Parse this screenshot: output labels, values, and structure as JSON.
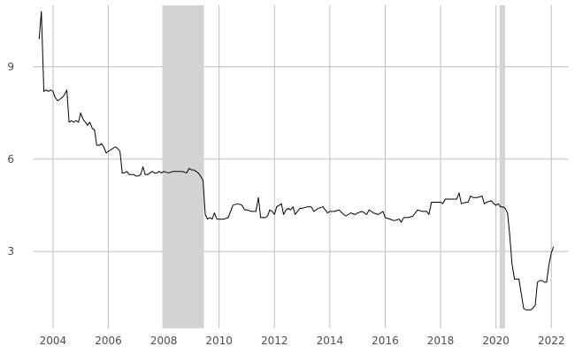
{
  "chart_data": {
    "type": "line",
    "title": "",
    "xlabel": "",
    "ylabel": "",
    "xlim": [
      2003.3,
      2022.6
    ],
    "ylim": [
      0.5,
      11.0
    ],
    "grid": true,
    "legend": "none",
    "x_ticks": [
      {
        "value": 2004,
        "label": "2004"
      },
      {
        "value": 2006,
        "label": "2006"
      },
      {
        "value": 2008,
        "label": "2008"
      },
      {
        "value": 2010,
        "label": "2010"
      },
      {
        "value": 2012,
        "label": "2012"
      },
      {
        "value": 2014,
        "label": "2014"
      },
      {
        "value": 2016,
        "label": "2016"
      },
      {
        "value": 2018,
        "label": "2018"
      },
      {
        "value": 2020,
        "label": "2020"
      },
      {
        "value": 2022,
        "label": "2022"
      }
    ],
    "y_ticks": [
      {
        "value": 3,
        "label": "3"
      },
      {
        "value": 6,
        "label": "6"
      },
      {
        "value": 9,
        "label": "9"
      }
    ],
    "shaded_periods": [
      {
        "start": 2007.95,
        "end": 2009.45
      },
      {
        "start": 2020.13,
        "end": 2020.33
      }
    ],
    "colors": {
      "line": "#000000",
      "shading": "#d3d3d3",
      "grid": "#bebebe",
      "tick_text": "#4d4d4d"
    },
    "series": [
      {
        "points": [
          [
            2003.5,
            9.9
          ],
          [
            2003.58,
            10.8
          ],
          [
            2003.67,
            8.2
          ],
          [
            2003.75,
            8.25
          ],
          [
            2003.83,
            8.2
          ],
          [
            2003.92,
            8.25
          ],
          [
            2004.0,
            8.2
          ],
          [
            2004.08,
            8.0
          ],
          [
            2004.17,
            7.9
          ],
          [
            2004.25,
            7.95
          ],
          [
            2004.33,
            8.0
          ],
          [
            2004.42,
            8.1
          ],
          [
            2004.5,
            8.25
          ],
          [
            2004.58,
            7.2
          ],
          [
            2004.67,
            7.25
          ],
          [
            2004.75,
            7.2
          ],
          [
            2004.83,
            7.25
          ],
          [
            2004.92,
            7.2
          ],
          [
            2005.0,
            7.5
          ],
          [
            2005.08,
            7.3
          ],
          [
            2005.17,
            7.2
          ],
          [
            2005.25,
            7.1
          ],
          [
            2005.33,
            7.2
          ],
          [
            2005.42,
            7.0
          ],
          [
            2005.5,
            6.95
          ],
          [
            2005.58,
            6.45
          ],
          [
            2005.67,
            6.45
          ],
          [
            2005.75,
            6.5
          ],
          [
            2005.83,
            6.4
          ],
          [
            2005.92,
            6.2
          ],
          [
            2006.0,
            6.25
          ],
          [
            2006.08,
            6.3
          ],
          [
            2006.17,
            6.35
          ],
          [
            2006.25,
            6.4
          ],
          [
            2006.33,
            6.35
          ],
          [
            2006.42,
            6.25
          ],
          [
            2006.5,
            5.55
          ],
          [
            2006.58,
            5.55
          ],
          [
            2006.67,
            5.6
          ],
          [
            2006.75,
            5.5
          ],
          [
            2006.83,
            5.5
          ],
          [
            2006.92,
            5.5
          ],
          [
            2007.0,
            5.45
          ],
          [
            2007.08,
            5.45
          ],
          [
            2007.17,
            5.5
          ],
          [
            2007.25,
            5.75
          ],
          [
            2007.33,
            5.5
          ],
          [
            2007.42,
            5.5
          ],
          [
            2007.5,
            5.55
          ],
          [
            2007.58,
            5.6
          ],
          [
            2007.67,
            5.55
          ],
          [
            2007.75,
            5.55
          ],
          [
            2007.83,
            5.6
          ],
          [
            2007.92,
            5.55
          ],
          [
            2008.0,
            5.6
          ],
          [
            2008.17,
            5.55
          ],
          [
            2008.33,
            5.6
          ],
          [
            2008.5,
            5.6
          ],
          [
            2008.67,
            5.6
          ],
          [
            2008.83,
            5.55
          ],
          [
            2008.92,
            5.7
          ],
          [
            2009.0,
            5.65
          ],
          [
            2009.08,
            5.65
          ],
          [
            2009.17,
            5.6
          ],
          [
            2009.25,
            5.55
          ],
          [
            2009.33,
            5.45
          ],
          [
            2009.42,
            5.3
          ],
          [
            2009.5,
            4.2
          ],
          [
            2009.58,
            4.05
          ],
          [
            2009.67,
            4.1
          ],
          [
            2009.75,
            4.05
          ],
          [
            2009.83,
            4.25
          ],
          [
            2009.92,
            4.05
          ],
          [
            2010.0,
            4.05
          ],
          [
            2010.17,
            4.05
          ],
          [
            2010.33,
            4.1
          ],
          [
            2010.5,
            4.5
          ],
          [
            2010.67,
            4.55
          ],
          [
            2010.83,
            4.5
          ],
          [
            2010.92,
            4.35
          ],
          [
            2011.0,
            4.35
          ],
          [
            2011.17,
            4.3
          ],
          [
            2011.33,
            4.3
          ],
          [
            2011.42,
            4.75
          ],
          [
            2011.5,
            4.1
          ],
          [
            2011.58,
            4.1
          ],
          [
            2011.67,
            4.1
          ],
          [
            2011.75,
            4.15
          ],
          [
            2011.83,
            4.35
          ],
          [
            2011.92,
            4.3
          ],
          [
            2012.0,
            4.2
          ],
          [
            2012.08,
            4.45
          ],
          [
            2012.17,
            4.5
          ],
          [
            2012.25,
            4.55
          ],
          [
            2012.33,
            4.2
          ],
          [
            2012.42,
            4.35
          ],
          [
            2012.5,
            4.4
          ],
          [
            2012.58,
            4.35
          ],
          [
            2012.67,
            4.45
          ],
          [
            2012.75,
            4.2
          ],
          [
            2012.83,
            4.3
          ],
          [
            2012.92,
            4.4
          ],
          [
            2013.0,
            4.4
          ],
          [
            2013.17,
            4.45
          ],
          [
            2013.33,
            4.45
          ],
          [
            2013.42,
            4.3
          ],
          [
            2013.58,
            4.4
          ],
          [
            2013.75,
            4.45
          ],
          [
            2013.92,
            4.25
          ],
          [
            2014.0,
            4.3
          ],
          [
            2014.17,
            4.3
          ],
          [
            2014.33,
            4.35
          ],
          [
            2014.5,
            4.2
          ],
          [
            2014.58,
            4.15
          ],
          [
            2014.75,
            4.25
          ],
          [
            2014.92,
            4.2
          ],
          [
            2015.0,
            4.25
          ],
          [
            2015.17,
            4.3
          ],
          [
            2015.33,
            4.2
          ],
          [
            2015.42,
            4.35
          ],
          [
            2015.58,
            4.25
          ],
          [
            2015.75,
            4.2
          ],
          [
            2015.92,
            4.3
          ],
          [
            2016.0,
            4.1
          ],
          [
            2016.17,
            4.05
          ],
          [
            2016.33,
            4.0
          ],
          [
            2016.5,
            4.05
          ],
          [
            2016.58,
            3.95
          ],
          [
            2016.67,
            4.1
          ],
          [
            2016.83,
            4.1
          ],
          [
            2017.0,
            4.15
          ],
          [
            2017.17,
            4.35
          ],
          [
            2017.33,
            4.3
          ],
          [
            2017.5,
            4.3
          ],
          [
            2017.58,
            4.2
          ],
          [
            2017.67,
            4.6
          ],
          [
            2017.83,
            4.6
          ],
          [
            2018.0,
            4.6
          ],
          [
            2018.08,
            4.55
          ],
          [
            2018.17,
            4.7
          ],
          [
            2018.33,
            4.7
          ],
          [
            2018.5,
            4.7
          ],
          [
            2018.58,
            4.7
          ],
          [
            2018.67,
            4.9
          ],
          [
            2018.75,
            4.55
          ],
          [
            2018.92,
            4.6
          ],
          [
            2019.0,
            4.6
          ],
          [
            2019.08,
            4.8
          ],
          [
            2019.17,
            4.75
          ],
          [
            2019.33,
            4.75
          ],
          [
            2019.5,
            4.8
          ],
          [
            2019.58,
            4.55
          ],
          [
            2019.67,
            4.6
          ],
          [
            2019.83,
            4.65
          ],
          [
            2019.92,
            4.55
          ],
          [
            2020.0,
            4.5
          ],
          [
            2020.08,
            4.55
          ],
          [
            2020.17,
            4.45
          ],
          [
            2020.25,
            4.45
          ],
          [
            2020.33,
            4.4
          ],
          [
            2020.42,
            4.25
          ],
          [
            2020.5,
            3.5
          ],
          [
            2020.58,
            2.6
          ],
          [
            2020.67,
            2.1
          ],
          [
            2020.75,
            2.1
          ],
          [
            2020.83,
            2.1
          ],
          [
            2020.92,
            1.6
          ],
          [
            2021.0,
            1.15
          ],
          [
            2021.08,
            1.1
          ],
          [
            2021.17,
            1.1
          ],
          [
            2021.25,
            1.1
          ],
          [
            2021.33,
            1.15
          ],
          [
            2021.42,
            1.25
          ],
          [
            2021.5,
            2.0
          ],
          [
            2021.58,
            2.05
          ],
          [
            2021.67,
            2.05
          ],
          [
            2021.75,
            2.0
          ],
          [
            2021.83,
            2.0
          ],
          [
            2021.92,
            2.6
          ],
          [
            2022.0,
            2.95
          ],
          [
            2022.08,
            3.15
          ]
        ]
      }
    ]
  }
}
